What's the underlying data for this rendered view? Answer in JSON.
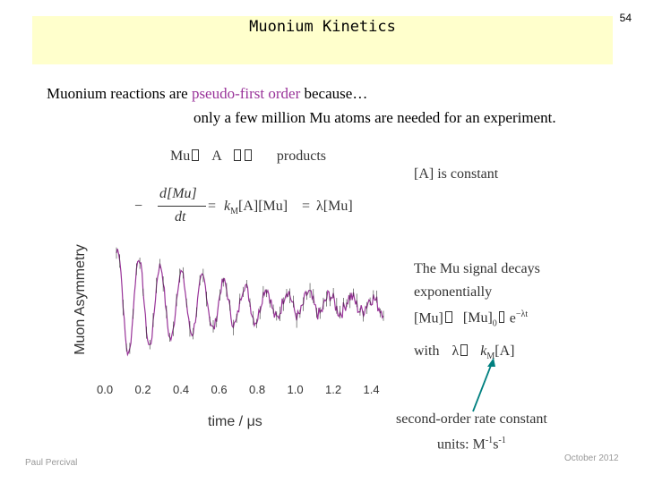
{
  "slide": {
    "number": "54",
    "title": "Muonium Kinetics",
    "intro_prefix": "Muonium reactions are ",
    "intro_highlight": "pseudo-first order",
    "intro_suffix": " because…",
    "intro_line2": "only a few million Mu atoms are needed for an experiment.",
    "reaction_lhs": "Mu",
    "reaction_a": "A",
    "reaction_products": "products",
    "constant_note": "[A] is constant",
    "rate_eq_minus": "−",
    "rate_eq_num": "d[Mu]",
    "rate_eq_den": "dt",
    "rate_eq_eq": "=",
    "rate_eq_k": "k",
    "rate_eq_ksub": "M",
    "rate_eq_mid": "[A][Mu]",
    "rate_eq_eq2": "=",
    "rate_eq_end": "λ[Mu]",
    "signal_line1": "The Mu signal decays",
    "signal_line2": "exponentially",
    "decay_eq_lhs": "[Mu]",
    "decay_eq_eq": "=",
    "decay_eq_rhs": "[Mu]",
    "decay_eq_sub": "0",
    "decay_eq_exp": "e",
    "decay_eq_power": "−λt",
    "with_label": "with",
    "with_lambda": "λ",
    "with_eq": "=",
    "with_k": "k",
    "with_ksub": "M",
    "with_a": "[A]",
    "rate_const_line1": "second-order rate constant",
    "rate_const_units_prefix": "units: M",
    "rate_const_units_sup1": "-1",
    "rate_const_units_mid": "s",
    "rate_const_units_sup2": "-1",
    "footer_left": "Paul Percival",
    "footer_right": "October 2012"
  },
  "chart_data": {
    "type": "line",
    "xlabel": "time / μs",
    "ylabel": "Muon Asymmetry",
    "xlim": [
      0.0,
      1.4
    ],
    "x_ticks": [
      "0.0",
      "0.2",
      "0.4",
      "0.6",
      "0.8",
      "1.0",
      "1.2",
      "1.4"
    ],
    "grid": false,
    "series": [
      {
        "color": "#993399",
        "description_free_values": true,
        "frequency_per_us": 9.0,
        "decay_rate_per_us": 1.6,
        "amplitude": 1.0,
        "noise_amplitude": 0.12
      }
    ],
    "colors": {
      "data": "#993399",
      "axes": "#333333",
      "arrow": "#008080"
    }
  }
}
